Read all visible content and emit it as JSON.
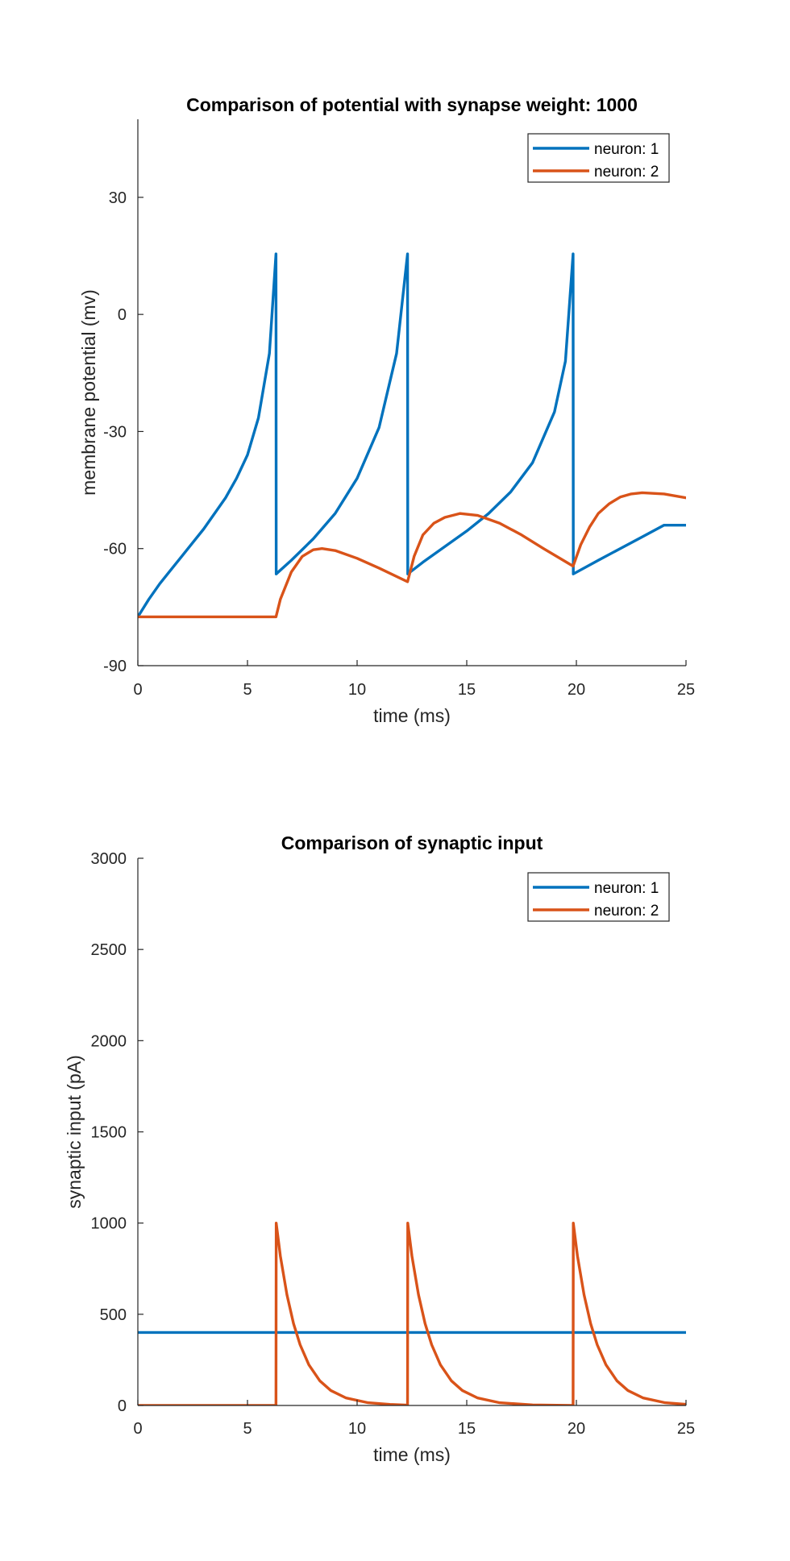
{
  "chart_data": [
    {
      "type": "line",
      "title": "Comparison of potential with synapse weight: 1000",
      "xlabel": "time (ms)",
      "ylabel": "membrane potential (mv)",
      "xlim": [
        0,
        25
      ],
      "ylim": [
        -90,
        50
      ],
      "xticks": [
        0,
        5,
        10,
        15,
        20,
        25
      ],
      "xtick_labels": [
        "0",
        "5",
        "10",
        "15",
        "20",
        "25"
      ],
      "yticks": [
        -90,
        -60,
        -30,
        0,
        30
      ],
      "ytick_labels": [
        "-90",
        "-60",
        "-30",
        "0",
        "30"
      ],
      "grid": false,
      "legend_position": "top-right",
      "series": [
        {
          "name": "neuron: 1",
          "color": "#0072BD",
          "points": [
            [
              0,
              -77.5
            ],
            [
              0.5,
              -73
            ],
            [
              1,
              -69
            ],
            [
              1.5,
              -65.5
            ],
            [
              2,
              -62
            ],
            [
              2.5,
              -58.5
            ],
            [
              3,
              -55
            ],
            [
              3.5,
              -51
            ],
            [
              4,
              -47
            ],
            [
              4.5,
              -42
            ],
            [
              5,
              -36
            ],
            [
              5.5,
              -26.5
            ],
            [
              6,
              -10
            ],
            [
              6.3,
              15.5
            ],
            [
              6.31,
              -66.5
            ],
            [
              7,
              -63
            ],
            [
              8,
              -57.5
            ],
            [
              9,
              -51
            ],
            [
              10,
              -42
            ],
            [
              11,
              -29
            ],
            [
              11.8,
              -10
            ],
            [
              12.3,
              15.5
            ],
            [
              12.31,
              -66.5
            ],
            [
              13,
              -63.5
            ],
            [
              14,
              -59.5
            ],
            [
              15,
              -55.5
            ],
            [
              16,
              -51
            ],
            [
              17,
              -45.5
            ],
            [
              18,
              -38
            ],
            [
              19,
              -25
            ],
            [
              19.5,
              -12
            ],
            [
              19.85,
              15.5
            ],
            [
              19.86,
              -66.5
            ],
            [
              21,
              -63
            ],
            [
              22,
              -60
            ],
            [
              23,
              -57
            ],
            [
              24,
              -54
            ],
            [
              25,
              -54
            ]
          ]
        },
        {
          "name": "neuron: 2",
          "color": "#D95319",
          "points": [
            [
              0,
              -77.5
            ],
            [
              6.3,
              -77.5
            ],
            [
              6.5,
              -73
            ],
            [
              7,
              -66
            ],
            [
              7.5,
              -62
            ],
            [
              8,
              -60.3
            ],
            [
              8.4,
              -60
            ],
            [
              9,
              -60.5
            ],
            [
              10,
              -62.5
            ],
            [
              11,
              -65
            ],
            [
              12.3,
              -68.5
            ],
            [
              12.6,
              -62
            ],
            [
              13,
              -56.5
            ],
            [
              13.5,
              -53.5
            ],
            [
              14,
              -52
            ],
            [
              14.7,
              -51
            ],
            [
              15.5,
              -51.5
            ],
            [
              16.5,
              -53.5
            ],
            [
              17.5,
              -56.5
            ],
            [
              18.5,
              -60
            ],
            [
              19.85,
              -64.5
            ],
            [
              20.2,
              -59
            ],
            [
              20.6,
              -54.5
            ],
            [
              21,
              -51
            ],
            [
              21.5,
              -48.5
            ],
            [
              22,
              -46.8
            ],
            [
              22.5,
              -46
            ],
            [
              23,
              -45.7
            ],
            [
              24,
              -46
            ],
            [
              25,
              -47
            ]
          ]
        }
      ]
    },
    {
      "type": "line",
      "title": "Comparison of synaptic input",
      "xlabel": "time (ms)",
      "ylabel": "synaptic input (pA)",
      "xlim": [
        0,
        25
      ],
      "ylim": [
        0,
        3000
      ],
      "xticks": [
        0,
        5,
        10,
        15,
        20,
        25
      ],
      "xtick_labels": [
        "0",
        "5",
        "10",
        "15",
        "20",
        "25"
      ],
      "yticks": [
        0,
        500,
        1000,
        1500,
        2000,
        2500,
        3000
      ],
      "ytick_labels": [
        "0",
        "500",
        "1000",
        "1500",
        "2000",
        "2500",
        "3000"
      ],
      "grid": false,
      "legend_position": "top-right",
      "series": [
        {
          "name": "neuron: 1",
          "color": "#0072BD",
          "points": [
            [
              0,
              400
            ],
            [
              25,
              400
            ]
          ]
        },
        {
          "name": "neuron: 2",
          "color": "#D95319",
          "points": [
            [
              0,
              0
            ],
            [
              6.3,
              0
            ],
            [
              6.31,
              1000
            ],
            [
              6.5,
              819
            ],
            [
              6.8,
              607
            ],
            [
              7.1,
              449
            ],
            [
              7.4,
              333
            ],
            [
              7.8,
              223
            ],
            [
              8.3,
              135
            ],
            [
              8.8,
              82
            ],
            [
              9.5,
              41
            ],
            [
              10.5,
              15
            ],
            [
              11.5,
              6
            ],
            [
              12.3,
              2
            ],
            [
              12.31,
              1000
            ],
            [
              12.5,
              819
            ],
            [
              12.8,
              607
            ],
            [
              13.1,
              449
            ],
            [
              13.4,
              333
            ],
            [
              13.8,
              223
            ],
            [
              14.3,
              135
            ],
            [
              14.8,
              82
            ],
            [
              15.5,
              41
            ],
            [
              16.5,
              15
            ],
            [
              18,
              3
            ],
            [
              19.85,
              0
            ],
            [
              19.86,
              1000
            ],
            [
              20.05,
              819
            ],
            [
              20.35,
              607
            ],
            [
              20.65,
              449
            ],
            [
              20.95,
              333
            ],
            [
              21.35,
              223
            ],
            [
              21.85,
              135
            ],
            [
              22.35,
              82
            ],
            [
              23.05,
              41
            ],
            [
              24.05,
              15
            ],
            [
              25,
              6
            ]
          ]
        }
      ]
    }
  ]
}
